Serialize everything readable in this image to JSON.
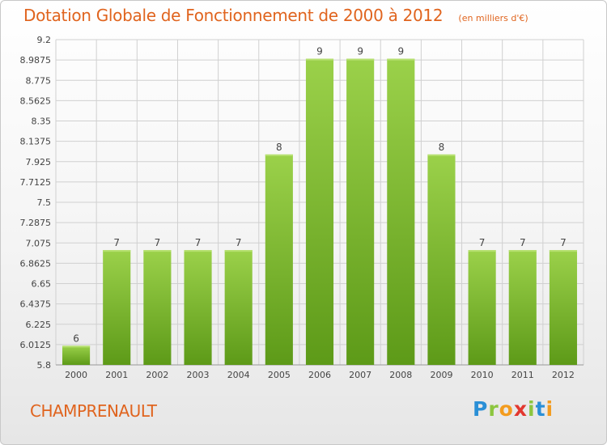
{
  "header": {
    "title": "Dotation Globale de Fonctionnement de 2000 à 2012",
    "unit_note": "(en milliers d'€)"
  },
  "footer": {
    "commune": "CHAMPRENAULT",
    "logo_text": "Proxiti",
    "logo_letters": [
      {
        "ch": "P",
        "color": "#2a8fd6"
      },
      {
        "ch": "r",
        "color": "#8cc63f"
      },
      {
        "ch": "o",
        "color": "#f39c1f"
      },
      {
        "ch": "x",
        "color": "#e2372f"
      },
      {
        "ch": "i",
        "color": "#8cc63f"
      },
      {
        "ch": "t",
        "color": "#2a8fd6"
      },
      {
        "ch": "i",
        "color": "#f39c1f"
      }
    ]
  },
  "chart_data": {
    "type": "bar",
    "categories": [
      "2000",
      "2001",
      "2002",
      "2003",
      "2004",
      "2005",
      "2006",
      "2007",
      "2008",
      "2009",
      "2010",
      "2011",
      "2012"
    ],
    "values": [
      6,
      7,
      7,
      7,
      7,
      8,
      9,
      9,
      9,
      8,
      7,
      7,
      7
    ],
    "data_labels": [
      "6",
      "7",
      "7",
      "7",
      "7",
      "8",
      "9",
      "9",
      "9",
      "8",
      "7",
      "7",
      "7"
    ],
    "ylim": [
      5.8,
      9.2
    ],
    "yticks": [
      5.8,
      6.0125,
      6.225,
      6.4375,
      6.65,
      6.8625,
      7.075,
      7.2875,
      7.5,
      7.7125,
      7.925,
      8.1375,
      8.35,
      8.5625,
      8.775,
      8.9875,
      9.2
    ],
    "ytick_labels": [
      "5.8",
      "6.0125",
      "6.225",
      "6.4375",
      "6.65",
      "6.8625",
      "7.075",
      "7.2875",
      "7.5",
      "7.7125",
      "7.925",
      "8.1375",
      "8.35",
      "8.5625",
      "8.775",
      "8.9875",
      "9.2"
    ],
    "grid": true,
    "colors": {
      "bar_light": "#9bd14a",
      "bar_dark": "#5d9a18",
      "grid": "#d0d0d0",
      "text": "#444444"
    }
  }
}
